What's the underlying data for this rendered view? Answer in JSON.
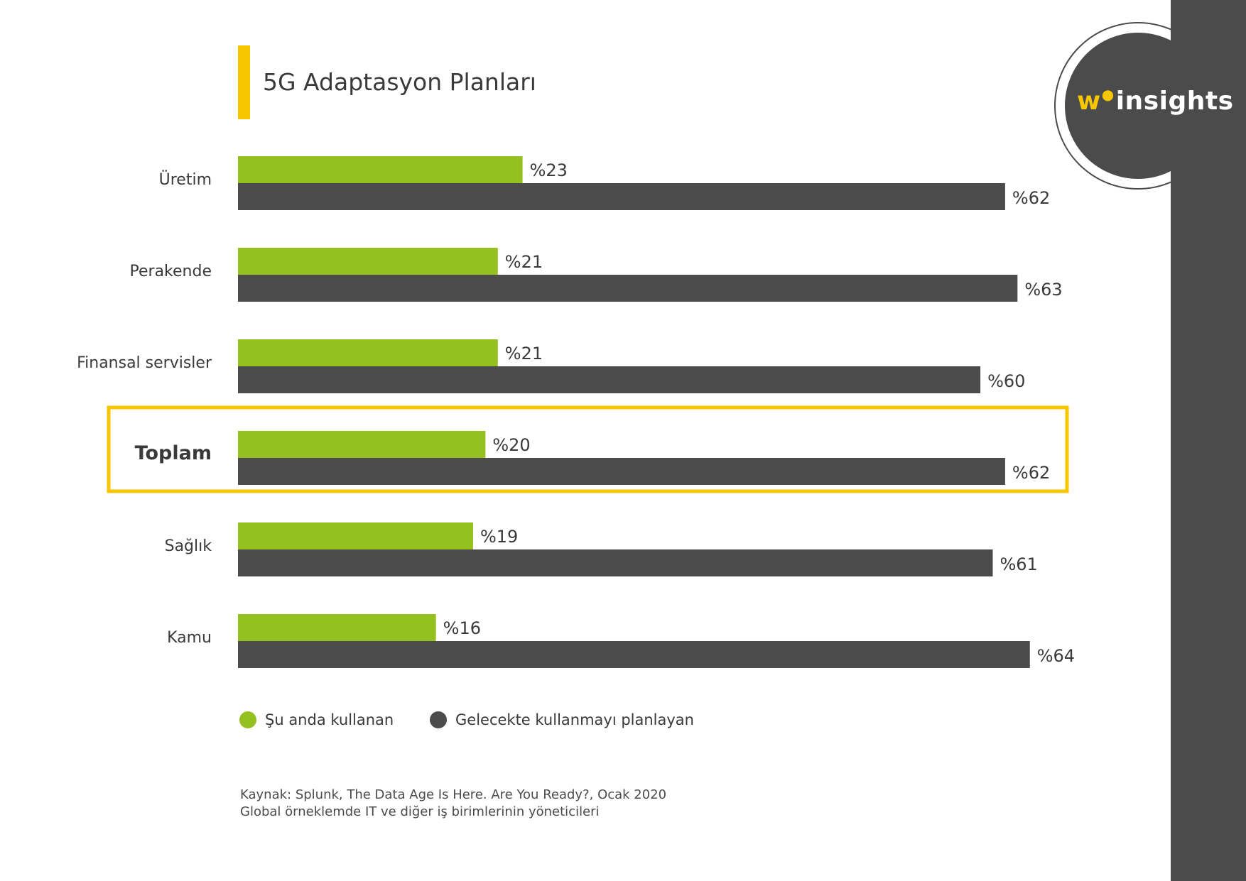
{
  "brand": {
    "logo_mark": "w",
    "logo_text": "insights",
    "accent_color": "#f6c700",
    "dark_color": "#4b4b4b",
    "green_color": "#94c11f"
  },
  "title": "5G Adaptasyon Planları",
  "chart_data": {
    "type": "bar",
    "orientation": "horizontal",
    "title": "5G Adaptasyon Planları",
    "categories": [
      "Üretim",
      "Perakende",
      "Finansal servisler",
      "Toplam",
      "Sağlık",
      "Kamu"
    ],
    "highlighted_category": "Toplam",
    "series": [
      {
        "name": "Şu anda kullanan",
        "color": "#94c11f",
        "values": [
          23,
          21,
          21,
          20,
          19,
          16
        ],
        "labels": [
          "%23",
          "%21",
          "%21",
          "%20",
          "%19",
          "%16"
        ]
      },
      {
        "name": "Gelecekte kullanmayı planlayan",
        "color": "#4b4b4b",
        "values": [
          62,
          63,
          60,
          62,
          61,
          64
        ],
        "labels": [
          "%62",
          "%63",
          "%60",
          "%62",
          "%61",
          "%64"
        ]
      }
    ],
    "xlim": [
      0,
      67
    ],
    "xlabel": "",
    "ylabel": "",
    "grid": false,
    "legend_position": "bottom-left"
  },
  "legend": {
    "current": "Şu anda kullanan",
    "future": "Gelecekte kullanmayı planlayan"
  },
  "source": {
    "line1": "Kaynak: Splunk, The Data Age Is Here. Are You Ready?, Ocak 2020",
    "line2": "Global örneklemde IT ve diğer iş birimlerinin yöneticileri"
  }
}
